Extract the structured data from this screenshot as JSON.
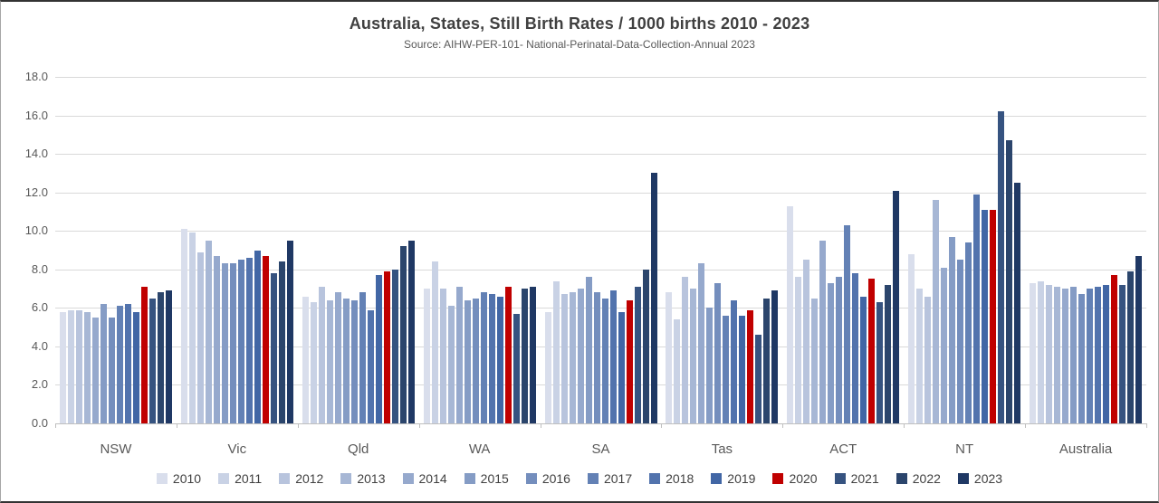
{
  "chart": {
    "title": "Australia, States, Still Birth Rates / 1000 births 2010 - 2023",
    "subtitle": "Source: AIHW-PER-101- National-Perinatal-Data-Collection-Annual 2023"
  },
  "chart_data": {
    "type": "bar",
    "title": "Australia, States, Still Birth Rates / 1000 births 2010 - 2023",
    "subtitle": "Source: AIHW-PER-101- National-Perinatal-Data-Collection-Annual 2023",
    "categories": [
      "NSW",
      "Vic",
      "Qld",
      "WA",
      "SA",
      "Tas",
      "ACT",
      "NT",
      "Australia"
    ],
    "ylim": [
      0,
      18
    ],
    "ytick_step": 2,
    "ytick_labels": [
      "0.0",
      "2.0",
      "4.0",
      "6.0",
      "8.0",
      "10.0",
      "12.0",
      "14.0",
      "16.0",
      "18.0"
    ],
    "grid": true,
    "legend_position": "bottom",
    "highlight_color": "#c00000",
    "series": [
      {
        "name": "2010",
        "color": "#d9deec",
        "values": [
          5.8,
          10.1,
          6.6,
          7.0,
          5.8,
          6.8,
          11.3,
          8.8,
          7.3
        ]
      },
      {
        "name": "2011",
        "color": "#c9d2e5",
        "values": [
          5.9,
          9.9,
          6.3,
          8.4,
          7.4,
          5.4,
          7.6,
          7.0,
          7.4
        ]
      },
      {
        "name": "2012",
        "color": "#b8c4dd",
        "values": [
          5.9,
          8.9,
          7.1,
          7.0,
          6.7,
          7.6,
          8.5,
          6.6,
          7.2
        ]
      },
      {
        "name": "2013",
        "color": "#a7b7d5",
        "values": [
          5.8,
          9.5,
          6.4,
          6.1,
          6.8,
          7.0,
          6.5,
          11.6,
          7.1
        ]
      },
      {
        "name": "2014",
        "color": "#96a9cd",
        "values": [
          5.5,
          8.7,
          6.8,
          7.1,
          7.0,
          8.3,
          9.5,
          8.1,
          7.0
        ]
      },
      {
        "name": "2015",
        "color": "#859cc5",
        "values": [
          6.2,
          8.3,
          6.5,
          6.4,
          7.6,
          6.0,
          7.3,
          9.7,
          7.1
        ]
      },
      {
        "name": "2016",
        "color": "#748ebd",
        "values": [
          5.5,
          8.3,
          6.4,
          6.5,
          6.8,
          7.3,
          7.6,
          8.5,
          6.7
        ]
      },
      {
        "name": "2017",
        "color": "#6381b5",
        "values": [
          6.1,
          8.5,
          6.8,
          6.8,
          6.5,
          5.6,
          10.3,
          9.4,
          7.0
        ]
      },
      {
        "name": "2018",
        "color": "#5273ad",
        "values": [
          6.2,
          8.6,
          5.9,
          6.7,
          6.9,
          6.4,
          7.8,
          11.9,
          7.1
        ]
      },
      {
        "name": "2019",
        "color": "#4166a5",
        "values": [
          5.8,
          9.0,
          7.7,
          6.6,
          5.8,
          5.6,
          6.6,
          11.1,
          7.2
        ]
      },
      {
        "name": "2020",
        "color": "#c00000",
        "values": [
          7.1,
          8.7,
          7.9,
          7.1,
          6.4,
          5.9,
          7.5,
          11.1,
          7.7
        ]
      },
      {
        "name": "2021",
        "color": "#365380",
        "values": [
          6.5,
          7.8,
          8.0,
          5.7,
          7.1,
          4.6,
          6.3,
          16.2,
          7.2
        ]
      },
      {
        "name": "2022",
        "color": "#2b456c",
        "values": [
          6.8,
          8.4,
          9.2,
          7.0,
          8.0,
          6.5,
          7.2,
          14.7,
          7.9
        ]
      },
      {
        "name": "2023",
        "color": "#1f3864",
        "values": [
          6.9,
          9.5,
          9.5,
          7.1,
          13.0,
          6.9,
          12.1,
          12.5,
          8.7
        ]
      }
    ]
  }
}
